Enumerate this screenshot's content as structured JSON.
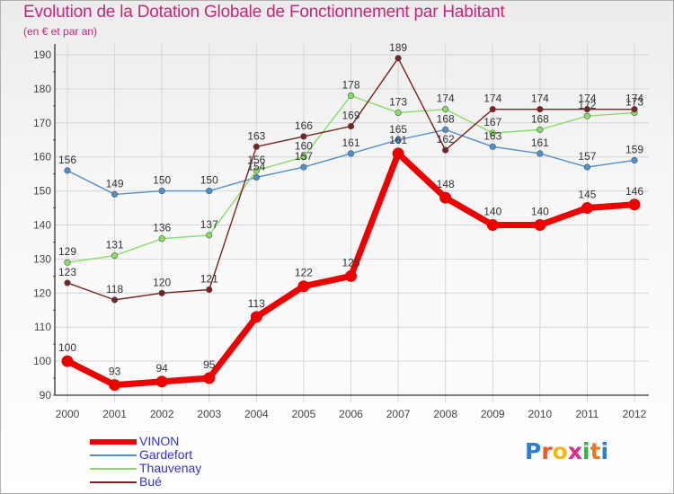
{
  "title": "Evolution de la Dotation Globale de Fonctionnement par Habitant",
  "subtitle": "(en € et par an)",
  "logo": {
    "text": "Proxiti",
    "colors": [
      "#2a7fd4",
      "#e85a2a",
      "#f0b81e",
      "#e02a8a",
      "#35b24a",
      "#e87a1e",
      "#2a7fd4"
    ]
  },
  "chart_data": {
    "type": "line",
    "title": "Evolution de la Dotation Globale de Fonctionnement par Habitant",
    "subtitle": "(en € et par an)",
    "xlabel": "",
    "ylabel": "",
    "categories": [
      "2000",
      "2001",
      "2002",
      "2003",
      "2004",
      "2005",
      "2006",
      "2007",
      "2008",
      "2009",
      "2010",
      "2011",
      "2012"
    ],
    "ylim": [
      90,
      190
    ],
    "yticks": [
      90,
      100,
      110,
      120,
      130,
      140,
      150,
      160,
      170,
      180,
      190
    ],
    "grid": true,
    "legend_position": "bottom-left",
    "series": [
      {
        "name": "VINON",
        "color": "#ee0000",
        "emphasis": true,
        "values": [
          100,
          93,
          94,
          95,
          113,
          122,
          125,
          161,
          148,
          140,
          140,
          145,
          146
        ]
      },
      {
        "name": "Gardefort",
        "color": "#4f8fcc",
        "emphasis": false,
        "values": [
          156,
          149,
          150,
          150,
          154,
          157,
          161,
          165,
          168,
          163,
          161,
          157,
          159
        ]
      },
      {
        "name": "Thauvenay",
        "color": "#88dd66",
        "emphasis": false,
        "values": [
          129,
          131,
          136,
          137,
          156,
          160,
          178,
          173,
          174,
          167,
          168,
          172,
          173
        ]
      },
      {
        "name": "Bué",
        "color": "#772222",
        "emphasis": false,
        "values": [
          123,
          118,
          120,
          121,
          163,
          166,
          169,
          189,
          162,
          174,
          174,
          174,
          174
        ]
      }
    ]
  }
}
